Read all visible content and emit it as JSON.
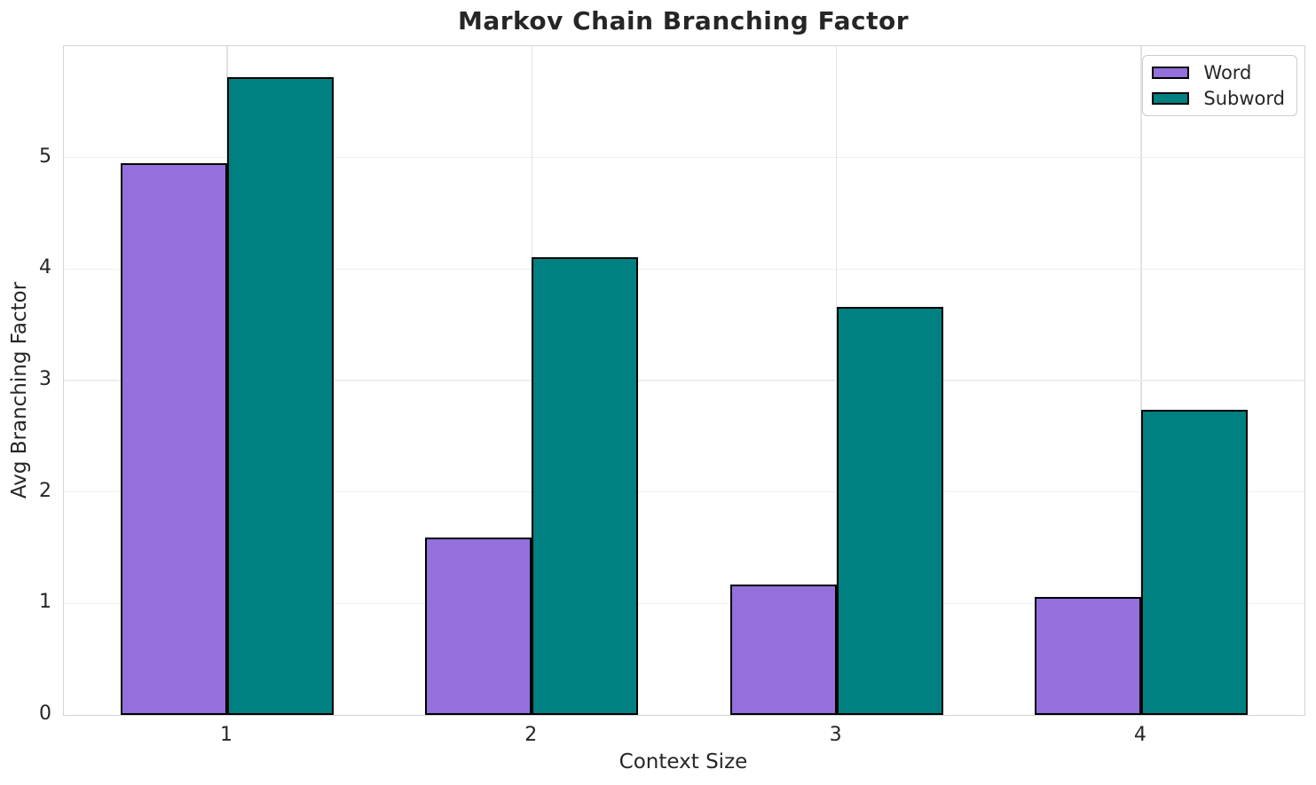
{
  "chart_data": {
    "type": "bar",
    "title": "Markov Chain Branching Factor",
    "xlabel": "Context Size",
    "ylabel": "Avg Branching Factor",
    "categories": [
      "1",
      "2",
      "3",
      "4"
    ],
    "series": [
      {
        "name": "Word",
        "color": "#9370DB",
        "values": [
          4.95,
          1.59,
          1.17,
          1.06
        ]
      },
      {
        "name": "Subword",
        "color": "#008080",
        "values": [
          5.72,
          4.11,
          3.66,
          2.74
        ]
      }
    ],
    "ylim": [
      0,
      6
    ],
    "yticks": [
      0,
      1,
      2,
      3,
      4,
      5
    ],
    "grid": true,
    "bar_edge_color": "#000000",
    "legend_position": "upper right"
  }
}
